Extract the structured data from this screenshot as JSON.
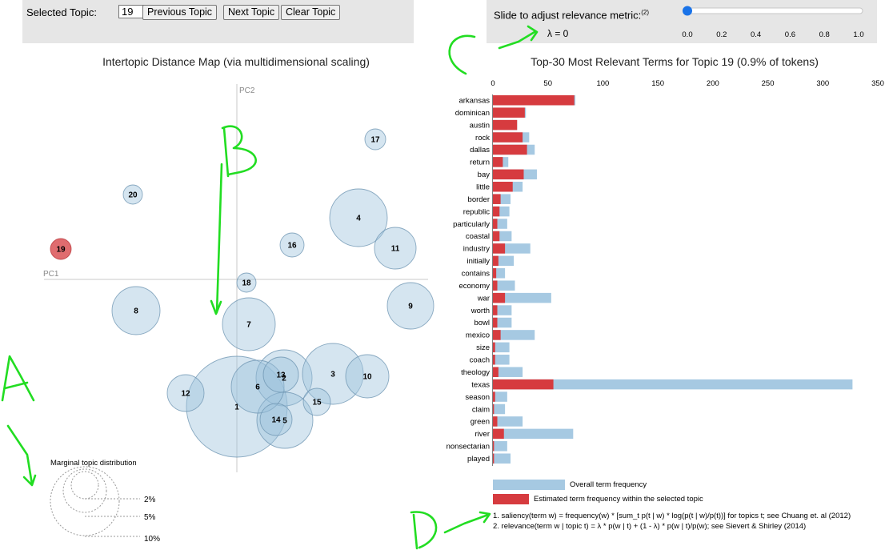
{
  "controls": {
    "selected_topic_label": "Selected Topic:",
    "selected_topic_value": "19",
    "previous_label": "Previous Topic",
    "next_label": "Next Topic",
    "clear_label": "Clear Topic",
    "slider_label": "Slide to adjust relevance metric:",
    "slider_sup": "(2)",
    "lambda_text": "λ = 0",
    "slider_value": 0,
    "slider_ticks": [
      "0.0",
      "0.2",
      "0.4",
      "0.6",
      "0.8",
      "1.0"
    ]
  },
  "left_title": "Intertopic Distance Map (via multidimensional scaling)",
  "right_title": "Top-30 Most Relevant Terms for Topic 19 (0.9% of tokens)",
  "pc1_label": "PC1",
  "pc2_label": "PC2",
  "topics": [
    {
      "id": "1"
    },
    {
      "id": "2"
    },
    {
      "id": "3"
    },
    {
      "id": "4"
    },
    {
      "id": "5"
    },
    {
      "id": "6"
    },
    {
      "id": "7"
    },
    {
      "id": "8"
    },
    {
      "id": "9"
    },
    {
      "id": "10"
    },
    {
      "id": "11"
    },
    {
      "id": "12"
    },
    {
      "id": "13"
    },
    {
      "id": "14"
    },
    {
      "id": "15"
    },
    {
      "id": "16"
    },
    {
      "id": "17"
    },
    {
      "id": "18"
    },
    {
      "id": "19"
    },
    {
      "id": "20"
    }
  ],
  "marginal": {
    "title": "Marginal topic distribution",
    "labels": [
      "2%",
      "5%",
      "10%"
    ]
  },
  "chart_data": {
    "type": "bar",
    "orientation": "horizontal",
    "x_ticks": [
      0,
      50,
      100,
      150,
      200,
      250,
      300,
      350
    ],
    "xlim": [
      0,
      350
    ],
    "categories": [
      "arkansas",
      "dominican",
      "austin",
      "rock",
      "dallas",
      "return",
      "bay",
      "little",
      "border",
      "republic",
      "particularly",
      "coastal",
      "industry",
      "initially",
      "contains",
      "economy",
      "war",
      "worth",
      "bowl",
      "mexico",
      "size",
      "coach",
      "theology",
      "texas",
      "season",
      "claim",
      "green",
      "river",
      "nonsectarian",
      "played"
    ],
    "series": [
      {
        "name": "Overall term frequency",
        "color": "#a6c9e2",
        "values": [
          75,
          30,
          22,
          33,
          38,
          14,
          40,
          27,
          16,
          15,
          13,
          17,
          34,
          19,
          11,
          20,
          53,
          17,
          17,
          38,
          15,
          15,
          27,
          327,
          13,
          11,
          27,
          73,
          13,
          16
        ]
      },
      {
        "name": "Estimated term frequency within the selected topic",
        "color": "#d63b3f",
        "values": [
          74,
          29,
          22,
          27,
          31,
          9,
          28,
          18,
          7,
          6,
          4,
          6,
          11,
          5,
          3,
          4,
          11,
          4,
          4,
          7,
          2,
          2,
          5,
          55,
          2,
          1,
          4,
          10,
          1,
          1
        ]
      }
    ]
  },
  "footnotes": [
    "1. saliency(term w) = frequency(w) * [sum_t p(t | w) * log(p(t | w)/p(t))] for topics t; see Chuang et. al (2012)",
    "2. relevance(term w | topic t) = λ * p(w | t) + (1 - λ) * p(w | t)/p(w); see Sievert & Shirley (2014)"
  ],
  "annotations": {
    "a": "A",
    "b": "B",
    "c": "C",
    "d": "D",
    "color": "#22dd22"
  }
}
